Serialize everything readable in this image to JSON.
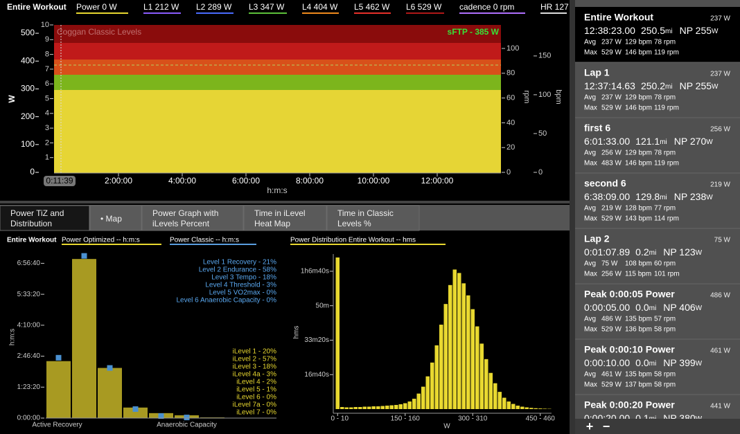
{
  "top_chart": {
    "header": "Entire Workout",
    "legend": [
      {
        "text": "Power  0 W",
        "color": "#e8d830"
      },
      {
        "text": "L1  212 W",
        "color": "#8a5cff"
      },
      {
        "text": "L2  289 W",
        "color": "#4a6cff"
      },
      {
        "text": "L3  347 W",
        "color": "#5dc23a"
      },
      {
        "text": "L4  404 W",
        "color": "#f08a1c"
      },
      {
        "text": "L5  462 W",
        "color": "#e8302a"
      },
      {
        "text": "L6  529 W",
        "color": "#b01818"
      },
      {
        "text": "cadence  0 rpm",
        "color": "#b070ff"
      },
      {
        "text": "HR  127",
        "color": "#dddddd"
      }
    ],
    "zones_label": "Coggan Classic Levels",
    "ftp_label": "sFTP - 385 W",
    "power_axis": {
      "label": "W",
      "ylim": [
        0,
        530
      ],
      "yticks": [
        0,
        100,
        200,
        300,
        400,
        500
      ]
    },
    "level_axis": {
      "ylim": [
        0,
        10
      ],
      "yticks": [
        1,
        2,
        3,
        4,
        5,
        6,
        7,
        8,
        9,
        10
      ]
    },
    "rpm_axis": {
      "label": "rpm",
      "ylim": [
        0,
        119
      ],
      "yticks": [
        0,
        20,
        40,
        60,
        80,
        100
      ]
    },
    "bpm_axis": {
      "label": "bpm",
      "ylim": [
        0,
        190
      ],
      "yticks": [
        0,
        50,
        100,
        150
      ]
    },
    "x_axis": {
      "label": "h:m:s",
      "xlim": [
        0,
        50400
      ],
      "xticks": [
        {
          "value": 7200,
          "label": "2:00:00"
        },
        {
          "value": 14400,
          "label": "4:00:00"
        },
        {
          "value": 21600,
          "label": "6:00:00"
        },
        {
          "value": 28800,
          "label": "8:00:00"
        },
        {
          "value": 36000,
          "label": "10:00:00"
        },
        {
          "value": 43200,
          "label": "12:00:00"
        }
      ]
    },
    "cursor": "0:11:39"
  },
  "tabs": [
    "Power TiZ and Distribution",
    "• Map",
    "Power Graph with iLevels Percent",
    "Time in iLevel Heat Map",
    "Time in Classic Levels %"
  ],
  "tiz_chart": {
    "type": "bar",
    "header": "Entire Workout",
    "legend": [
      {
        "text": "Power Optimized  -- h:m:s",
        "color": "#e8d830"
      },
      {
        "text": "Power Classic  -- h:m:s",
        "color": "#5a9ee0"
      }
    ],
    "y_label": "h:m:s",
    "ylim": [
      0,
      26500
    ],
    "yticks": [
      {
        "value": 0,
        "label": "0:00:00"
      },
      {
        "value": 5000,
        "label": "1:23:20"
      },
      {
        "value": 10000,
        "label": "2:46:40"
      },
      {
        "value": 15000,
        "label": "4:10:00"
      },
      {
        "value": 20000,
        "label": "5:33:20"
      },
      {
        "value": 25000,
        "label": "6:56:40"
      }
    ],
    "categories": [
      "Active Recovery",
      null,
      null,
      null,
      null,
      "Anaerobic Capacity",
      null,
      null,
      null
    ],
    "series": [
      {
        "name": "Power Optimized",
        "color": "#a89a22",
        "values": [
          9200,
          25700,
          8100,
          1700,
          800,
          450,
          100,
          50,
          30
        ]
      },
      {
        "name": "Power Classic",
        "color": "#4a90d0",
        "values": [
          9750,
          26200,
          8100,
          1450,
          330,
          100
        ]
      }
    ],
    "classic_levels": [
      "Level 1 Recovery - 21%",
      "Level 2 Endurance - 58%",
      "Level 3 Tempo - 18%",
      "Level 4 Threshold - 3%",
      "Level 5 VO2max - 0%",
      "Level 6 Anaerobic Capacity - 0%"
    ],
    "ilevels": [
      "iLevel 1 - 20%",
      "iLevel 2 - 57%",
      "iLevel 3 - 18%",
      "iLevel 4a - 3%",
      "iLevel 4 - 2%",
      "iLevel 5 - 1%",
      "iLevel 6 - 0%",
      "iLevel 7a - 0%",
      "iLevel 7 - 0%"
    ]
  },
  "dist_chart": {
    "type": "bar",
    "title": "Power Distribution   Entire Workout   -- hms",
    "color": "#e8d830",
    "y_label": "hms",
    "x_label": "W",
    "ylim": [
      0,
      4500
    ],
    "yticks": [
      {
        "value": 1000,
        "label": "16m40s"
      },
      {
        "value": 2000,
        "label": "33m20s"
      },
      {
        "value": 3000,
        "label": "50m"
      },
      {
        "value": 4000,
        "label": "1h6m40s"
      }
    ],
    "categories": [
      "0 - 10",
      null,
      null,
      null,
      null,
      null,
      null,
      null,
      null,
      null,
      null,
      null,
      null,
      null,
      null,
      "150 - 160",
      null,
      null,
      null,
      null,
      null,
      null,
      null,
      null,
      null,
      null,
      null,
      null,
      null,
      null,
      "300 - 310",
      null,
      null,
      null,
      null,
      null,
      null,
      null,
      null,
      null,
      null,
      null,
      null,
      null,
      null,
      "450 - 460",
      null,
      null
    ],
    "values": [
      4400,
      60,
      50,
      50,
      60,
      60,
      70,
      70,
      80,
      80,
      90,
      100,
      110,
      120,
      140,
      170,
      220,
      300,
      450,
      650,
      950,
      1350,
      1850,
      2450,
      3050,
      3600,
      4050,
      3950,
      3650,
      3300,
      2900,
      2400,
      1900,
      1450,
      1050,
      750,
      500,
      330,
      220,
      150,
      100,
      70,
      50,
      35,
      25,
      18,
      12,
      8
    ]
  },
  "sidebar": [
    {
      "title": "Entire Workout",
      "power": "237 W",
      "time": "12:38:23.00",
      "dist": "250.5",
      "dist_unit": "mi",
      "np": "NP 255",
      "np_unit": "W",
      "avg": [
        "Avg",
        "237 W",
        "129 bpm",
        "78 rpm"
      ],
      "max": [
        "Max",
        "529 W",
        "146 bpm",
        "119 rpm"
      ]
    },
    {
      "title": "Lap 1",
      "power": "237 W",
      "time": "12:37:14.63",
      "dist": "250.2",
      "dist_unit": "mi",
      "np": "NP 255",
      "np_unit": "W",
      "avg": [
        "Avg",
        "237 W",
        "129 bpm",
        "78 rpm"
      ],
      "max": [
        "Max",
        "529 W",
        "146 bpm",
        "119 rpm"
      ]
    },
    {
      "title": "first 6",
      "power": "256 W",
      "time": "6:01:33.00",
      "dist": "121.1",
      "dist_unit": "mi",
      "np": "NP 270",
      "np_unit": "W",
      "avg": [
        "Avg",
        "256 W",
        "129 bpm",
        "78 rpm"
      ],
      "max": [
        "Max",
        "483 W",
        "146 bpm",
        "119 rpm"
      ]
    },
    {
      "title": "second 6",
      "power": "219 W",
      "time": "6:38:09.00",
      "dist": "129.8",
      "dist_unit": "mi",
      "np": "NP 238",
      "np_unit": "W",
      "avg": [
        "Avg",
        "219 W",
        "128 bpm",
        "77 rpm"
      ],
      "max": [
        "Max",
        "529 W",
        "143 bpm",
        "114 rpm"
      ]
    },
    {
      "title": "Lap 2",
      "power": "75 W",
      "time": "0:01:07.89",
      "dist": "0.2",
      "dist_unit": "mi",
      "np": "NP 123",
      "np_unit": "W",
      "avg": [
        "Avg",
        "75 W",
        "108 bpm",
        "60 rpm"
      ],
      "max": [
        "Max",
        "256 W",
        "115 bpm",
        "101 rpm"
      ]
    },
    {
      "title": "Peak 0:00:05 Power",
      "power": "486 W",
      "time": "0:00:05.00",
      "dist": "0.0",
      "dist_unit": "mi",
      "np": "NP 406",
      "np_unit": "W",
      "avg": [
        "Avg",
        "486 W",
        "135 bpm",
        "57 rpm"
      ],
      "max": [
        "Max",
        "529 W",
        "136 bpm",
        "58 rpm"
      ]
    },
    {
      "title": "Peak 0:00:10 Power",
      "power": "461 W",
      "time": "0:00:10.00",
      "dist": "0.0",
      "dist_unit": "mi",
      "np": "NP 399",
      "np_unit": "W",
      "avg": [
        "Avg",
        "461 W",
        "135 bpm",
        "58 rpm"
      ],
      "max": [
        "Max",
        "529 W",
        "137 bpm",
        "58 rpm"
      ]
    },
    {
      "title": "Peak 0:00:20 Power",
      "power": "441 W",
      "time": "0:00:20.00",
      "dist": "0.1",
      "dist_unit": "mi",
      "np": "NP 380",
      "np_unit": "W"
    }
  ],
  "toolbar": [
    "+",
    "−"
  ]
}
